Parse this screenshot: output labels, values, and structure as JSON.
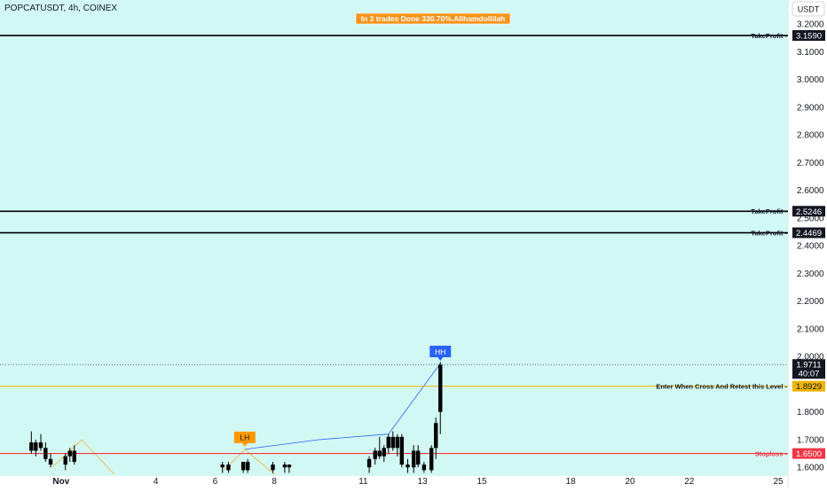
{
  "header": {
    "symbol": "POPCATUSDT, 4h, COINEX",
    "currency": "USDT",
    "banner": "In 3 trades Done 330.70%.Allhamdollilah"
  },
  "colors": {
    "background": "#d2f8f3",
    "candle": "#000000",
    "stoploss": "#f23645",
    "entry": "#f0b400",
    "takeprofit": "#000000",
    "banner_bg": "#f7931a",
    "label_hh": "#2962ff",
    "label_lh": "#ff9800"
  },
  "chart_data": {
    "type": "candlestick",
    "ylim": [
      1.575,
      3.22
    ],
    "y_ticks": [
      1.6,
      1.7,
      1.8,
      1.9,
      2.0,
      2.1,
      2.2,
      2.3,
      2.4,
      2.5,
      2.6,
      2.7,
      2.8,
      2.9,
      3.0,
      3.1,
      3.2
    ],
    "x_ticks": [
      {
        "label": "Nov",
        "bold": true,
        "day": 1
      },
      {
        "label": "4",
        "day": 4
      },
      {
        "label": "6",
        "day": 6
      },
      {
        "label": "8",
        "day": 8
      },
      {
        "label": "11",
        "day": 11
      },
      {
        "label": "13",
        "day": 13
      },
      {
        "label": "15",
        "day": 15
      },
      {
        "label": "18",
        "day": 18
      },
      {
        "label": "20",
        "day": 20
      },
      {
        "label": "22",
        "day": 22
      },
      {
        "label": "25",
        "day": 25
      }
    ],
    "candles": [
      {
        "day": -0.2,
        "o": 1.69,
        "h": 1.73,
        "l": 1.65,
        "c": 1.66
      },
      {
        "day": -0.05,
        "o": 1.66,
        "h": 1.7,
        "l": 1.64,
        "c": 1.69
      },
      {
        "day": 0.12,
        "o": 1.69,
        "h": 1.72,
        "l": 1.66,
        "c": 1.67
      },
      {
        "day": 0.28,
        "o": 1.67,
        "h": 1.69,
        "l": 1.62,
        "c": 1.63
      },
      {
        "day": 0.45,
        "o": 1.63,
        "h": 1.65,
        "l": 1.6,
        "c": 1.61
      },
      {
        "day": 0.95,
        "o": 1.61,
        "h": 1.65,
        "l": 1.59,
        "c": 1.64
      },
      {
        "day": 1.1,
        "o": 1.64,
        "h": 1.67,
        "l": 1.62,
        "c": 1.66
      },
      {
        "day": 1.25,
        "o": 1.66,
        "h": 1.68,
        "l": 1.61,
        "c": 1.62
      },
      {
        "day": 6.25,
        "o": 1.6,
        "h": 1.62,
        "l": 1.58,
        "c": 1.61
      },
      {
        "day": 6.45,
        "o": 1.61,
        "h": 1.62,
        "l": 1.58,
        "c": 1.59
      },
      {
        "day": 6.95,
        "o": 1.59,
        "h": 1.62,
        "l": 1.58,
        "c": 1.62
      },
      {
        "day": 7.1,
        "o": 1.62,
        "h": 1.63,
        "l": 1.58,
        "c": 1.59
      },
      {
        "day": 7.95,
        "o": 1.59,
        "h": 1.62,
        "l": 1.58,
        "c": 1.61
      },
      {
        "day": 8.35,
        "o": 1.61,
        "h": 1.62,
        "l": 1.58,
        "c": 1.6
      },
      {
        "day": 8.5,
        "o": 1.6,
        "h": 1.61,
        "l": 1.58,
        "c": 1.61
      },
      {
        "day": 11.2,
        "o": 1.6,
        "h": 1.64,
        "l": 1.58,
        "c": 1.63
      },
      {
        "day": 11.4,
        "o": 1.63,
        "h": 1.67,
        "l": 1.61,
        "c": 1.66
      },
      {
        "day": 11.55,
        "o": 1.66,
        "h": 1.71,
        "l": 1.63,
        "c": 1.64
      },
      {
        "day": 11.7,
        "o": 1.64,
        "h": 1.68,
        "l": 1.62,
        "c": 1.67
      },
      {
        "day": 11.85,
        "o": 1.67,
        "h": 1.72,
        "l": 1.65,
        "c": 1.71
      },
      {
        "day": 12.0,
        "o": 1.71,
        "h": 1.73,
        "l": 1.66,
        "c": 1.67
      },
      {
        "day": 12.15,
        "o": 1.67,
        "h": 1.72,
        "l": 1.64,
        "c": 1.71
      },
      {
        "day": 12.3,
        "o": 1.71,
        "h": 1.72,
        "l": 1.6,
        "c": 1.61
      },
      {
        "day": 12.5,
        "o": 1.61,
        "h": 1.63,
        "l": 1.58,
        "c": 1.6
      },
      {
        "day": 12.7,
        "o": 1.6,
        "h": 1.68,
        "l": 1.58,
        "c": 1.66
      },
      {
        "day": 12.85,
        "o": 1.66,
        "h": 1.68,
        "l": 1.6,
        "c": 1.61
      },
      {
        "day": 13.05,
        "o": 1.61,
        "h": 1.62,
        "l": 1.58,
        "c": 1.59
      },
      {
        "day": 13.3,
        "o": 1.59,
        "h": 1.68,
        "l": 1.58,
        "c": 1.67
      },
      {
        "day": 13.45,
        "o": 1.67,
        "h": 1.78,
        "l": 1.63,
        "c": 1.76
      },
      {
        "day": 13.6,
        "o": 1.8,
        "h": 1.98,
        "l": 1.72,
        "c": 1.97
      }
    ],
    "levels": [
      {
        "name": "take-profit-1",
        "label": "TakeProfit",
        "price": 3.159,
        "price_label": "3.1590",
        "style": "solid"
      },
      {
        "name": "take-profit-2",
        "label": "TakeProfit",
        "price": 2.5246,
        "price_label": "2.5246",
        "style": "solid"
      },
      {
        "name": "take-profit-3",
        "label": "TakeProfit",
        "price": 2.4469,
        "price_label": "2.4469",
        "style": "solid"
      },
      {
        "name": "entry-level",
        "label": "Enter When Cross And Retest this Level",
        "price": 1.8929,
        "price_label": "1.8929",
        "style": "solid"
      },
      {
        "name": "stoploss-level",
        "label": "Stoploss",
        "price": 1.65,
        "price_label": "1.6500",
        "style": "solid"
      }
    ],
    "current_price": {
      "price": 1.9711,
      "price_label": "1.9711",
      "countdown": "40:07"
    },
    "pivots": [
      {
        "label": "HH",
        "day": 13.6,
        "price": 1.975,
        "color": "blue"
      },
      {
        "label": "LH",
        "day": 7.0,
        "price": 1.665,
        "color": "orange"
      }
    ],
    "trend_lines": [
      {
        "color": "blue",
        "points": [
          {
            "day": 7.0,
            "price": 1.665
          },
          {
            "day": 9.5,
            "price": 1.7
          },
          {
            "day": 11.85,
            "price": 1.72
          },
          {
            "day": 13.6,
            "price": 1.975
          }
        ]
      },
      {
        "color": "orange",
        "points": [
          {
            "day": 0.5,
            "price": 1.6
          },
          {
            "day": 1.5,
            "price": 1.7
          },
          {
            "day": 2.6,
            "price": 1.575
          }
        ]
      },
      {
        "color": "orange",
        "points": [
          {
            "day": 6.3,
            "price": 1.59
          },
          {
            "day": 7.0,
            "price": 1.665
          },
          {
            "day": 8.0,
            "price": 1.575
          }
        ]
      }
    ]
  }
}
